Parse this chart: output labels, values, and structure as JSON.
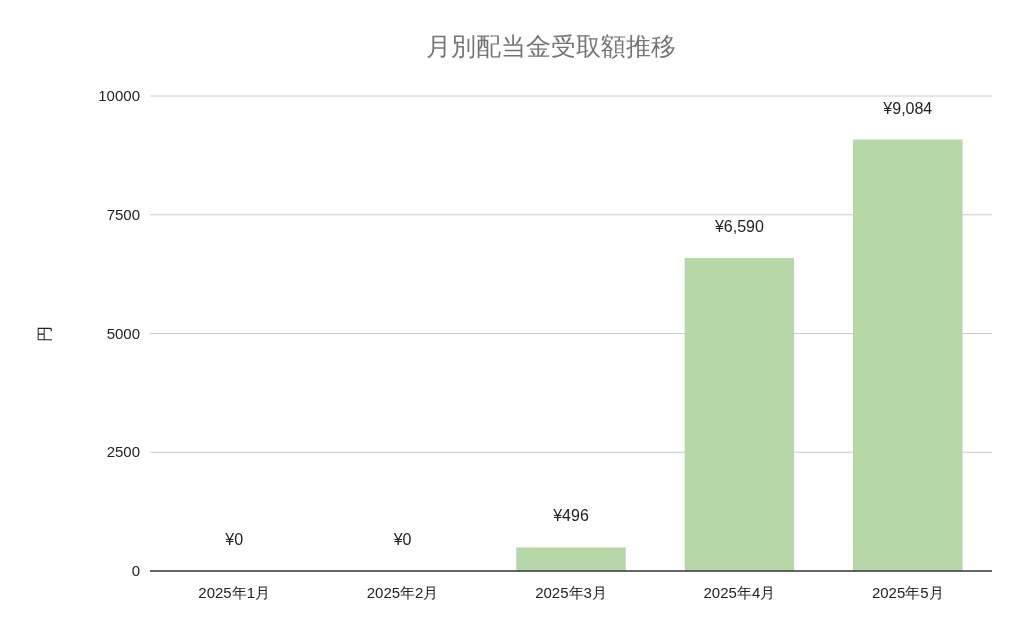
{
  "chart_data": {
    "type": "bar",
    "title": "月別配当金受取額推移",
    "ylabel": "円",
    "categories": [
      "2025年1月",
      "2025年2月",
      "2025年3月",
      "2025年4月",
      "2025年5月"
    ],
    "values": [
      0,
      0,
      496,
      6590,
      9084
    ],
    "value_labels": [
      "¥0",
      "¥0",
      "¥496",
      "¥6,590",
      "¥9,084"
    ],
    "color": "#b6d7a8",
    "ylim": [
      0,
      10000
    ],
    "yticks": [
      0,
      2500,
      5000,
      7500,
      10000
    ],
    "grid": "y"
  }
}
